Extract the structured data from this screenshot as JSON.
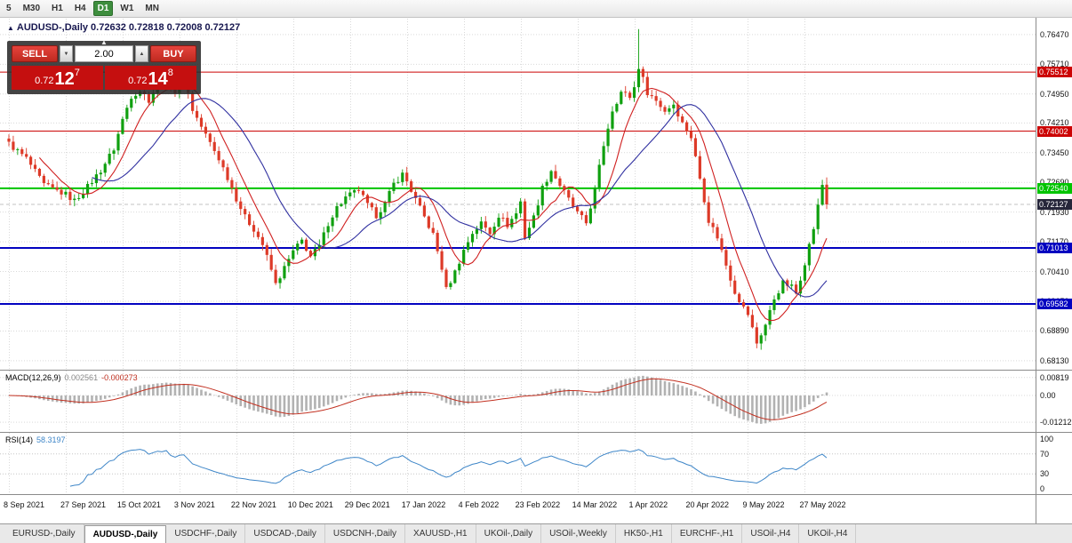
{
  "toolbar": {
    "timeframes": [
      {
        "label": "5",
        "active": false
      },
      {
        "label": "M30",
        "active": false
      },
      {
        "label": "H1",
        "active": false
      },
      {
        "label": "H4",
        "active": false
      },
      {
        "label": "D1",
        "active": true
      },
      {
        "label": "W1",
        "active": false
      },
      {
        "label": "MN",
        "active": false
      }
    ]
  },
  "symbol_header": {
    "marker": "▲",
    "text": "AUDUSD-,Daily 0.72632 0.72818 0.72008 0.72127"
  },
  "trade_panel": {
    "collapse_arrow": "▲",
    "sell_label": "SELL",
    "buy_label": "BUY",
    "volume": "2.00",
    "spin_down": "▼",
    "spin_up": "▲",
    "sell_price": {
      "prefix": "0.72",
      "big": "12",
      "sup": "7"
    },
    "buy_price": {
      "prefix": "0.72",
      "big": "14",
      "sup": "8"
    }
  },
  "indicator_headers": {
    "macd_title": "MACD(12,26,9)",
    "macd_value": "0.002561",
    "macd_signal": "-0.000273",
    "rsi_title": "RSI(14)",
    "rsi_value": "58.3197"
  },
  "tabs": [
    {
      "label": "EURUSD-,Daily",
      "active": false
    },
    {
      "label": "AUDUSD-,Daily",
      "active": true
    },
    {
      "label": "USDCHF-,Daily",
      "active": false
    },
    {
      "label": "USDCAD-,Daily",
      "active": false
    },
    {
      "label": "USDCNH-,Daily",
      "active": false
    },
    {
      "label": "XAUUSD-,H1",
      "active": false
    },
    {
      "label": "UKOil-,Daily",
      "active": false
    },
    {
      "label": "USOil-,Weekly",
      "active": false
    },
    {
      "label": "HK50-,H1",
      "active": false
    },
    {
      "label": "EURCHF-,H1",
      "active": false
    },
    {
      "label": "USOil-,H4",
      "active": false
    },
    {
      "label": "UKOil-,H4",
      "active": false
    }
  ],
  "chart_data": {
    "type": "candlestick",
    "symbol": "AUDUSD",
    "timeframe": "Daily",
    "last_ohlc": {
      "open": 0.72632,
      "high": 0.72818,
      "low": 0.72008,
      "close": 0.72127
    },
    "bars": 188,
    "tick_interval_bars": 13,
    "date_ticks": [
      "8 Sep 2021",
      "27 Sep 2021",
      "15 Oct 2021",
      "3 Nov 2021",
      "22 Nov 2021",
      "10 Dec 2021",
      "29 Dec 2021",
      "17 Jan 2022",
      "4 Feb 2022",
      "23 Feb 2022",
      "14 Mar 2022",
      "1 Apr 2022",
      "20 Apr 2022",
      "9 May 2022",
      "27 May 2022"
    ],
    "price_axis_labels": [
      "0.76470",
      "0.75710",
      "0.74950",
      "0.74210",
      "0.73450",
      "0.72690",
      "0.71930",
      "0.71170",
      "0.70410",
      "0.69650",
      "0.68890",
      "0.68130"
    ],
    "price_range": [
      0.679,
      0.769
    ],
    "close_waypoints": [
      [
        0,
        0.7368
      ],
      [
        4,
        0.733
      ],
      [
        8,
        0.7262
      ],
      [
        13,
        0.7238
      ],
      [
        15,
        0.7222
      ],
      [
        18,
        0.7258
      ],
      [
        21,
        0.73
      ],
      [
        24,
        0.7355
      ],
      [
        26,
        0.743
      ],
      [
        28,
        0.749
      ],
      [
        30,
        0.7505
      ],
      [
        32,
        0.748
      ],
      [
        34,
        0.752
      ],
      [
        36,
        0.7535
      ],
      [
        38,
        0.75
      ],
      [
        40,
        0.7538
      ],
      [
        42,
        0.7455
      ],
      [
        45,
        0.739
      ],
      [
        48,
        0.733
      ],
      [
        50,
        0.7282
      ],
      [
        52,
        0.7228
      ],
      [
        54,
        0.718
      ],
      [
        56,
        0.715
      ],
      [
        58,
        0.711
      ],
      [
        60,
        0.7045
      ],
      [
        61,
        0.7008
      ],
      [
        63,
        0.705
      ],
      [
        65,
        0.7092
      ],
      [
        67,
        0.712
      ],
      [
        69,
        0.708
      ],
      [
        71,
        0.7105
      ],
      [
        73,
        0.7165
      ],
      [
        75,
        0.7205
      ],
      [
        77,
        0.723
      ],
      [
        80,
        0.725
      ],
      [
        82,
        0.721
      ],
      [
        84,
        0.7185
      ],
      [
        86,
        0.7215
      ],
      [
        88,
        0.7265
      ],
      [
        90,
        0.729
      ],
      [
        91,
        0.7272
      ],
      [
        93,
        0.7225
      ],
      [
        95,
        0.718
      ],
      [
        97,
        0.7135
      ],
      [
        99,
        0.705
      ],
      [
        100,
        0.6995
      ],
      [
        102,
        0.704
      ],
      [
        104,
        0.7095
      ],
      [
        106,
        0.714
      ],
      [
        108,
        0.7165
      ],
      [
        110,
        0.714
      ],
      [
        112,
        0.7185
      ],
      [
        114,
        0.716
      ],
      [
        116,
        0.719
      ],
      [
        117,
        0.722
      ],
      [
        118,
        0.713
      ],
      [
        120,
        0.718
      ],
      [
        122,
        0.7255
      ],
      [
        124,
        0.73
      ],
      [
        126,
        0.7262
      ],
      [
        128,
        0.7225
      ],
      [
        130,
        0.719
      ],
      [
        132,
        0.7165
      ],
      [
        134,
        0.725
      ],
      [
        136,
        0.7365
      ],
      [
        138,
        0.7455
      ],
      [
        140,
        0.75
      ],
      [
        142,
        0.7488
      ],
      [
        143,
        0.7512
      ],
      [
        144,
        0.7565
      ],
      [
        146,
        0.75
      ],
      [
        148,
        0.7478
      ],
      [
        150,
        0.7452
      ],
      [
        152,
        0.747
      ],
      [
        154,
        0.742
      ],
      [
        156,
        0.7385
      ],
      [
        158,
        0.728
      ],
      [
        160,
        0.7172
      ],
      [
        162,
        0.713
      ],
      [
        164,
        0.7058
      ],
      [
        166,
        0.699
      ],
      [
        168,
        0.6948
      ],
      [
        169,
        0.6932
      ],
      [
        171,
        0.6858
      ],
      [
        173,
        0.6905
      ],
      [
        175,
        0.6972
      ],
      [
        177,
        0.7012
      ],
      [
        179,
        0.7002
      ],
      [
        180,
        0.6985
      ],
      [
        182,
        0.7065
      ],
      [
        184,
        0.7152
      ],
      [
        186,
        0.7263
      ],
      [
        187,
        0.72127
      ]
    ],
    "spike": {
      "day": 144,
      "high": 0.7661
    },
    "ma_fast": 8,
    "ma_slow": 20,
    "levels": [
      {
        "value": 0.75512,
        "label": "0.75512",
        "color": "#cc0404",
        "width": 1
      },
      {
        "value": 0.74002,
        "label": "0.74002",
        "color": "#cc0404",
        "width": 1
      },
      {
        "value": 0.7254,
        "label": "0.72540",
        "color": "#00c400",
        "width": 2
      },
      {
        "value": 0.71013,
        "label": "0.71013",
        "color": "#0202c0",
        "width": 2
      },
      {
        "value": 0.69582,
        "label": "0.69582",
        "color": "#0202c0",
        "width": 2
      }
    ],
    "current_price": {
      "value": 0.72127,
      "label": "0.72127",
      "color": "#26263a"
    },
    "macd_axis_labels": [
      "0.00819",
      "0.00",
      "-0.01212"
    ],
    "macd_range": [
      -0.0145,
      0.0105
    ],
    "rsi_axis_labels": [
      "100",
      "70",
      "30",
      "0"
    ],
    "rsi_levels": [
      70,
      30
    ],
    "colors": {
      "up": "#0fa00f",
      "down": "#dd3a28",
      "ma_fast": "#d02020",
      "ma_slow": "#3030a0",
      "macd_hist": "#b2b2b2",
      "macd_signal": "#c23020",
      "rsi": "#3e86c8",
      "grid": "#d9d9d9"
    }
  }
}
